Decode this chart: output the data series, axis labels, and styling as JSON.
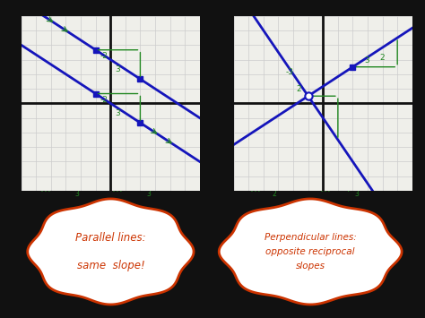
{
  "bg_color": "#e8e8e8",
  "grid_color": "#cccccc",
  "axis_color": "#111111",
  "line_color": "#1515bb",
  "dot_color": "#1515bb",
  "annotation_color": "#228822",
  "bubble1_lines": [
    "Parallel lines:",
    "same  slope!"
  ],
  "bubble2_lines": [
    "Perpendicular lines:",
    "opposite reciprocal",
    "slopes"
  ],
  "bubble_edge_color": "#cc3300",
  "bubble_text_color": "#cc3300",
  "outer_bg": "#111111",
  "white_bg": "#ffffff",
  "graph_bg": "#efefea"
}
